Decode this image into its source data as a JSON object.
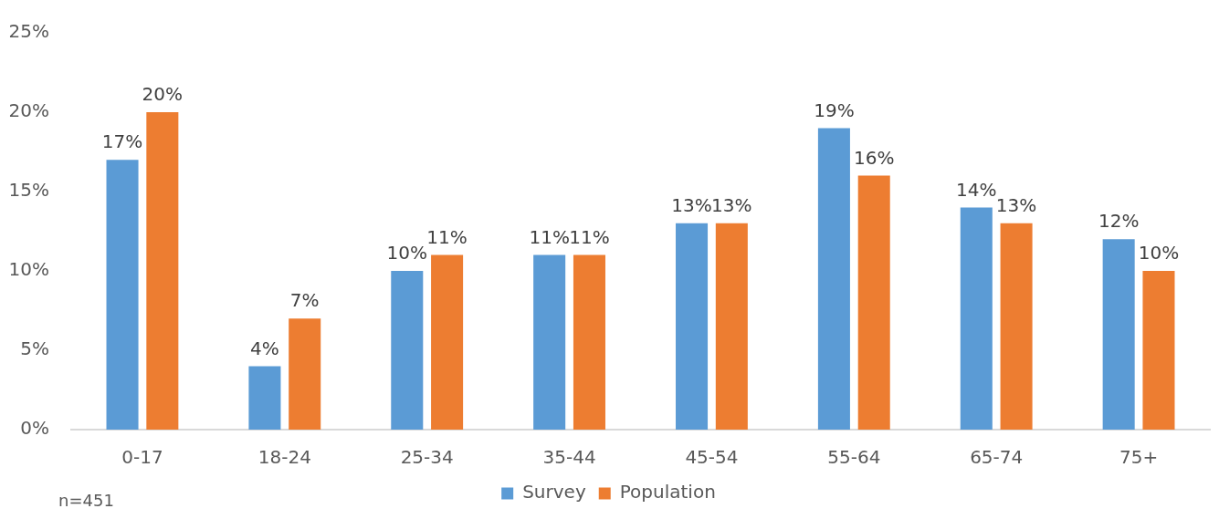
{
  "chart_data": {
    "type": "bar",
    "categories": [
      "0-17",
      "18-24",
      "25-34",
      "35-44",
      "45-54",
      "55-64",
      "65-74",
      "75+"
    ],
    "series": [
      {
        "name": "Survey",
        "color": "#5b9bd5",
        "values": [
          17,
          4,
          10,
          11,
          13,
          19,
          14,
          12
        ],
        "value_labels": [
          "17%",
          "4%",
          "10%",
          "11%",
          "13%",
          "19%",
          "14%",
          "12%"
        ]
      },
      {
        "name": "Population",
        "color": "#ed7d31",
        "values": [
          20,
          7,
          11,
          11,
          13,
          16,
          13,
          10
        ],
        "value_labels": [
          "20%",
          "7%",
          "11%",
          "11%",
          "13%",
          "16%",
          "13%",
          "10%"
        ]
      }
    ],
    "ylim": [
      0,
      25
    ],
    "yticks": [
      {
        "value": 0,
        "label": "0%"
      },
      {
        "value": 5,
        "label": "5%"
      },
      {
        "value": 10,
        "label": "10%"
      },
      {
        "value": 15,
        "label": "15%"
      },
      {
        "value": 20,
        "label": "20%"
      },
      {
        "value": 25,
        "label": "25%"
      }
    ],
    "grid": false,
    "legend": "bottom",
    "annotations": [
      "n=451"
    ]
  }
}
